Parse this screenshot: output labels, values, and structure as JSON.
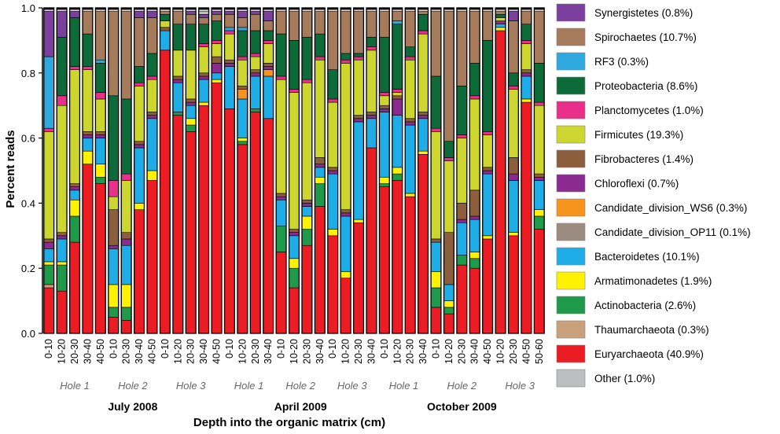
{
  "chart_data": {
    "type": "bar",
    "stacked": true,
    "ylabel": "Percent reads",
    "xlabel": "Depth into the organic matrix (cm)",
    "ylim": [
      0,
      1.0
    ],
    "yticks": [
      "0.0",
      "0.2",
      "0.4",
      "0.6",
      "0.8",
      "1.0"
    ],
    "categories": [
      "0-10",
      "10-20",
      "20-30",
      "30-40",
      "40-50",
      "0-10",
      "20-30",
      "30-40",
      "40-50",
      "0-10",
      "10-20",
      "20-30",
      "30-40",
      "40-50",
      "0-10",
      "10-20",
      "20-30",
      "30-40",
      "0-10",
      "10-20",
      "20-30",
      "30-40",
      "0-10",
      "10-20",
      "20-30",
      "30-40",
      "0-10",
      "10-20",
      "20-30",
      "30-40",
      "0-10",
      "10-20",
      "20-30",
      "30-40",
      "40-50",
      "10-20",
      "20-30",
      "40-50",
      "50-60"
    ],
    "holes": [
      {
        "label": "Hole 1",
        "start": 0,
        "end": 4
      },
      {
        "label": "Hole 2",
        "start": 5,
        "end": 8
      },
      {
        "label": "Hole 3",
        "start": 9,
        "end": 13
      },
      {
        "label": "Hole 1",
        "start": 14,
        "end": 17
      },
      {
        "label": "Hole 2",
        "start": 18,
        "end": 21
      },
      {
        "label": "Hole 3",
        "start": 22,
        "end": 25
      },
      {
        "label": "Hole 1",
        "start": 26,
        "end": 29
      },
      {
        "label": "Hole 2",
        "start": 30,
        "end": 34
      },
      {
        "label": "Hole 3",
        "start": 35,
        "end": 38
      }
    ],
    "periods": [
      {
        "label": "July 2008",
        "start": 0,
        "end": 13
      },
      {
        "label": "April 2009",
        "start": 14,
        "end": 25
      },
      {
        "label": "October 2009",
        "start": 26,
        "end": 38
      }
    ],
    "legend": [
      {
        "name": "Synergistetes (0.8%)",
        "color": "#7B3F9E"
      },
      {
        "name": "Spirochaetes (10.7%)",
        "color": "#A67B5B"
      },
      {
        "name": "RF3 (0.3%)",
        "color": "#2EA9E0"
      },
      {
        "name": "Proteobacteria (8.6%)",
        "color": "#0D6B3A"
      },
      {
        "name": "Planctomycetes (1.0%)",
        "color": "#E8308A"
      },
      {
        "name": "Firmicutes (19.3%)",
        "color": "#CCD62E"
      },
      {
        "name": "Fibrobacteres (1.4%)",
        "color": "#8B5E3C"
      },
      {
        "name": "Chloroflexi (0.7%)",
        "color": "#8B2A8F"
      },
      {
        "name": "Candidate_division_WS6 (0.3%)",
        "color": "#F7941D"
      },
      {
        "name": "Candidate_division_OP11 (0.1%)",
        "color": "#9C8C80"
      },
      {
        "name": "Bacteroidetes (10.1%)",
        "color": "#1EADE6"
      },
      {
        "name": "Armatimonadetes (1.9%)",
        "color": "#FFF200"
      },
      {
        "name": "Actinobacteria (2.6%)",
        "color": "#1E9A4A"
      },
      {
        "name": "Thaumarchaeota (0.3%)",
        "color": "#C8A07C"
      },
      {
        "name": "Euryarchaeota (40.9%)",
        "color": "#EC1C24"
      },
      {
        "name": "Other (1.0%)",
        "color": "#BCBEC0"
      }
    ],
    "series_order_bottom_to_top": [
      "Euryarchaeota",
      "Thaumarchaeota",
      "Actinobacteria",
      "Armatimonadetes",
      "Bacteroidetes",
      "Candidate_division_OP11",
      "Candidate_division_WS6",
      "Chloroflexi",
      "Fibrobacteres",
      "Firmicutes",
      "Planctomycetes",
      "Proteobacteria",
      "RF3",
      "Spirochaetes",
      "Synergistetes",
      "Other"
    ],
    "series_colors": [
      "#EC1C24",
      "#C8A07C",
      "#1E9A4A",
      "#FFF200",
      "#1EADE6",
      "#9C8C80",
      "#F7941D",
      "#8B2A8F",
      "#8B5E3C",
      "#CCD62E",
      "#E8308A",
      "#0D6B3A",
      "#2EA9E0",
      "#A67B5B",
      "#7B3F9E",
      "#BCBEC0"
    ],
    "cumulative_tops": [
      [
        0.14,
        0.15,
        0.21,
        0.22,
        0.26,
        0.26,
        0.26,
        0.28,
        0.29,
        0.62,
        0.63,
        0.63,
        0.85,
        0.85,
        0.99,
        0.99
      ],
      [
        0.13,
        0.13,
        0.21,
        0.22,
        0.29,
        0.29,
        0.29,
        0.3,
        0.31,
        0.7,
        0.73,
        0.91,
        0.91,
        0.91,
        0.99,
        0.99
      ],
      [
        0.28,
        0.28,
        0.36,
        0.41,
        0.44,
        0.44,
        0.44,
        0.45,
        0.46,
        0.81,
        0.82,
        0.97,
        0.97,
        0.97,
        0.99,
        0.99
      ],
      [
        0.52,
        0.52,
        0.52,
        0.56,
        0.6,
        0.6,
        0.6,
        0.61,
        0.62,
        0.81,
        0.82,
        0.92,
        0.92,
        0.99,
        0.99,
        0.99
      ],
      [
        0.46,
        0.46,
        0.48,
        0.52,
        0.6,
        0.6,
        0.6,
        0.61,
        0.62,
        0.72,
        0.74,
        0.83,
        0.84,
        0.99,
        0.99,
        0.99
      ],
      [
        0.05,
        0.05,
        0.08,
        0.15,
        0.26,
        0.26,
        0.26,
        0.27,
        0.38,
        0.42,
        0.47,
        0.73,
        0.73,
        0.99,
        0.99,
        0.99
      ],
      [
        0.04,
        0.04,
        0.08,
        0.15,
        0.27,
        0.27,
        0.27,
        0.29,
        0.31,
        0.47,
        0.49,
        0.72,
        0.72,
        0.99,
        0.99,
        0.99
      ],
      [
        0.38,
        0.38,
        0.38,
        0.4,
        0.57,
        0.57,
        0.57,
        0.58,
        0.59,
        0.76,
        0.77,
        0.82,
        0.82,
        0.97,
        0.99,
        0.99
      ],
      [
        0.47,
        0.47,
        0.47,
        0.5,
        0.66,
        0.66,
        0.66,
        0.67,
        0.68,
        0.78,
        0.79,
        0.86,
        0.86,
        0.97,
        0.99,
        0.99
      ],
      [
        0.87,
        0.87,
        0.87,
        0.87,
        0.93,
        0.93,
        0.93,
        0.93,
        0.94,
        0.96,
        0.96,
        0.98,
        0.98,
        0.99,
        0.99,
        0.99
      ],
      [
        0.67,
        0.67,
        0.68,
        0.68,
        0.77,
        0.77,
        0.77,
        0.78,
        0.79,
        0.87,
        0.87,
        0.95,
        0.95,
        0.99,
        0.99,
        0.99
      ],
      [
        0.62,
        0.62,
        0.64,
        0.66,
        0.7,
        0.7,
        0.7,
        0.71,
        0.72,
        0.87,
        0.87,
        0.95,
        0.95,
        0.98,
        0.99,
        0.99
      ],
      [
        0.7,
        0.7,
        0.7,
        0.71,
        0.78,
        0.78,
        0.78,
        0.79,
        0.8,
        0.88,
        0.89,
        0.95,
        0.95,
        0.97,
        0.98,
        0.99
      ],
      [
        0.77,
        0.77,
        0.77,
        0.78,
        0.8,
        0.8,
        0.8,
        0.83,
        0.85,
        0.89,
        0.9,
        0.96,
        0.96,
        0.98,
        0.99,
        0.99
      ],
      [
        0.69,
        0.69,
        0.69,
        0.69,
        0.82,
        0.82,
        0.82,
        0.83,
        0.84,
        0.92,
        0.93,
        0.93,
        0.94,
        0.98,
        0.99,
        0.99
      ],
      [
        0.58,
        0.58,
        0.59,
        0.6,
        0.72,
        0.72,
        0.75,
        0.75,
        0.76,
        0.84,
        0.85,
        0.93,
        0.94,
        0.97,
        0.99,
        0.99
      ],
      [
        0.68,
        0.68,
        0.69,
        0.69,
        0.79,
        0.79,
        0.79,
        0.8,
        0.81,
        0.85,
        0.86,
        0.93,
        0.93,
        0.98,
        0.99,
        0.99
      ],
      [
        0.66,
        0.66,
        0.66,
        0.66,
        0.79,
        0.79,
        0.81,
        0.82,
        0.83,
        0.89,
        0.9,
        0.93,
        0.93,
        0.96,
        0.99,
        0.99
      ],
      [
        0.25,
        0.25,
        0.33,
        0.33,
        0.41,
        0.41,
        0.41,
        0.42,
        0.43,
        0.78,
        0.79,
        0.92,
        0.92,
        0.99,
        0.99,
        0.99
      ],
      [
        0.14,
        0.14,
        0.2,
        0.23,
        0.3,
        0.3,
        0.3,
        0.31,
        0.32,
        0.74,
        0.75,
        0.9,
        0.9,
        0.99,
        0.99,
        0.99
      ],
      [
        0.27,
        0.27,
        0.32,
        0.36,
        0.39,
        0.39,
        0.39,
        0.4,
        0.41,
        0.77,
        0.78,
        0.91,
        0.91,
        0.99,
        0.99,
        0.99
      ],
      [
        0.39,
        0.39,
        0.46,
        0.48,
        0.51,
        0.51,
        0.51,
        0.52,
        0.54,
        0.84,
        0.85,
        0.92,
        0.92,
        0.99,
        0.99,
        0.99
      ],
      [
        0.3,
        0.3,
        0.3,
        0.32,
        0.49,
        0.49,
        0.49,
        0.5,
        0.51,
        0.71,
        0.72,
        0.81,
        0.81,
        0.99,
        0.99,
        0.99
      ],
      [
        0.17,
        0.17,
        0.17,
        0.19,
        0.36,
        0.36,
        0.36,
        0.37,
        0.38,
        0.83,
        0.84,
        0.86,
        0.86,
        0.99,
        0.99,
        0.99
      ],
      [
        0.34,
        0.34,
        0.34,
        0.35,
        0.65,
        0.65,
        0.65,
        0.66,
        0.67,
        0.84,
        0.85,
        0.86,
        0.86,
        0.99,
        0.99,
        0.99
      ],
      [
        0.57,
        0.57,
        0.57,
        0.57,
        0.66,
        0.66,
        0.66,
        0.67,
        0.68,
        0.87,
        0.88,
        0.91,
        0.91,
        0.99,
        0.99,
        0.99
      ],
      [
        0.45,
        0.45,
        0.46,
        0.48,
        0.68,
        0.68,
        0.68,
        0.69,
        0.7,
        0.73,
        0.74,
        0.91,
        0.91,
        0.99,
        0.99,
        0.99
      ],
      [
        0.47,
        0.47,
        0.49,
        0.51,
        0.67,
        0.67,
        0.67,
        0.72,
        0.73,
        0.74,
        0.75,
        0.95,
        0.96,
        0.99,
        0.99,
        0.99
      ],
      [
        0.42,
        0.42,
        0.42,
        0.43,
        0.64,
        0.64,
        0.64,
        0.65,
        0.66,
        0.84,
        0.85,
        0.88,
        0.88,
        0.99,
        0.99,
        0.99
      ],
      [
        0.55,
        0.55,
        0.55,
        0.56,
        0.66,
        0.66,
        0.66,
        0.67,
        0.68,
        0.92,
        0.93,
        0.98,
        0.98,
        0.99,
        0.99,
        0.99
      ],
      [
        0.08,
        0.08,
        0.14,
        0.19,
        0.28,
        0.28,
        0.28,
        0.28,
        0.29,
        0.62,
        0.63,
        0.79,
        0.79,
        0.99,
        0.99,
        0.99
      ],
      [
        0.06,
        0.06,
        0.08,
        0.1,
        0.15,
        0.15,
        0.15,
        0.15,
        0.31,
        0.53,
        0.54,
        0.59,
        0.59,
        0.99,
        0.99,
        0.99
      ],
      [
        0.21,
        0.21,
        0.24,
        0.24,
        0.34,
        0.34,
        0.34,
        0.35,
        0.4,
        0.6,
        0.61,
        0.76,
        0.76,
        0.99,
        0.99,
        0.99
      ],
      [
        0.2,
        0.2,
        0.23,
        0.25,
        0.35,
        0.35,
        0.35,
        0.36,
        0.44,
        0.72,
        0.73,
        0.83,
        0.83,
        0.99,
        0.99,
        0.99
      ],
      [
        0.29,
        0.29,
        0.29,
        0.3,
        0.49,
        0.49,
        0.49,
        0.5,
        0.51,
        0.61,
        0.62,
        0.9,
        0.9,
        0.99,
        0.99,
        0.99
      ],
      [
        0.93,
        0.93,
        0.93,
        0.94,
        0.95,
        0.95,
        0.95,
        0.96,
        0.96,
        0.97,
        0.97,
        0.98,
        0.98,
        0.99,
        0.99,
        0.99
      ],
      [
        0.3,
        0.3,
        0.3,
        0.31,
        0.47,
        0.47,
        0.47,
        0.49,
        0.54,
        0.75,
        0.76,
        0.8,
        0.8,
        0.96,
        0.99,
        0.99
      ],
      [
        0.71,
        0.71,
        0.71,
        0.72,
        0.79,
        0.79,
        0.79,
        0.8,
        0.81,
        0.89,
        0.9,
        0.95,
        0.95,
        0.99,
        0.99,
        0.99
      ],
      [
        0.32,
        0.32,
        0.36,
        0.38,
        0.47,
        0.47,
        0.47,
        0.48,
        0.49,
        0.7,
        0.71,
        0.83,
        0.83,
        0.99,
        0.99,
        0.99
      ]
    ]
  }
}
